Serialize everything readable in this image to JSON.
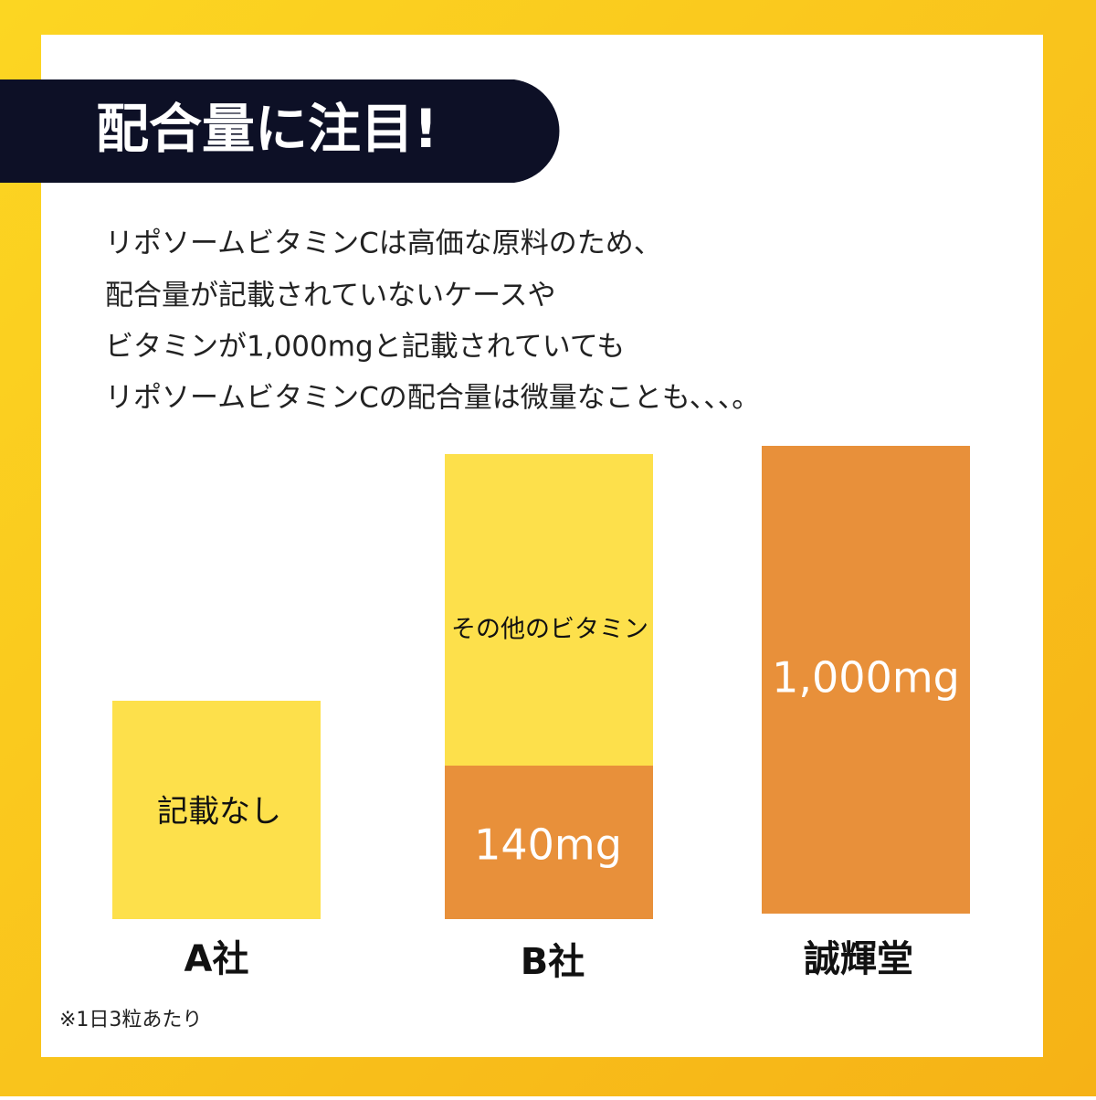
{
  "header": {
    "title": "配合量に注目!"
  },
  "body": {
    "lines": [
      "リポソームビタミンCは高価な原料のため、",
      "配合量が記載されていないケースや",
      "ビタミンが1,000mgと記載されていても",
      "リポソームビタミンCの配合量は微量なことも、、、。"
    ]
  },
  "columns": [
    {
      "name": "A社",
      "segments": [
        "記載なし"
      ]
    },
    {
      "name": "B社",
      "segments": [
        "その他のビタミン",
        "140mg"
      ]
    },
    {
      "name": "誠輝堂",
      "segments": [
        "1,000mg"
      ]
    }
  ],
  "footnote": "※1日3粒あたり"
}
